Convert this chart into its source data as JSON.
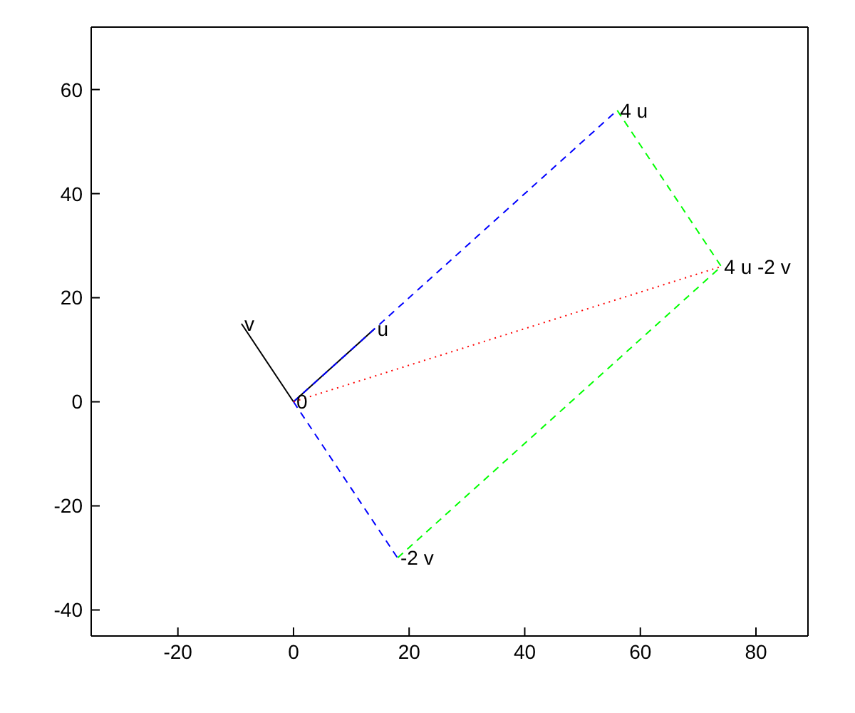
{
  "chart_data": {
    "type": "line",
    "xlim": [
      -35,
      89
    ],
    "ylim": [
      -45,
      72
    ],
    "xticks": [
      -20,
      0,
      20,
      40,
      60,
      80
    ],
    "yticks": [
      -40,
      -20,
      0,
      20,
      40,
      60
    ],
    "grid": false,
    "legend": false,
    "marker": "none",
    "series": [
      {
        "color": "#000000",
        "x": [
          0,
          14
        ],
        "values": [
          0,
          14
        ],
        "line_style": "solid"
      },
      {
        "color": "#000000",
        "x": [
          0,
          -9
        ],
        "values": [
          0,
          15
        ],
        "line_style": "solid"
      },
      {
        "color": "#0000ff",
        "x": [
          0,
          56
        ],
        "values": [
          0,
          56
        ],
        "line_style": "dashed"
      },
      {
        "color": "#0000ff",
        "x": [
          0,
          18
        ],
        "values": [
          0,
          -30
        ],
        "line_style": "dashed"
      },
      {
        "color": "#00ff00",
        "x": [
          56,
          74,
          18
        ],
        "values": [
          56,
          26,
          -30
        ],
        "line_style": "dashed"
      },
      {
        "color": "#ff0000",
        "x": [
          0,
          74
        ],
        "values": [
          0,
          26
        ],
        "line_style": "dotted"
      }
    ],
    "annotations": [
      {
        "text": "u",
        "x": 14,
        "y": 14
      },
      {
        "text": "v",
        "x": -9,
        "y": 15
      },
      {
        "text": "0",
        "x": 0,
        "y": 0
      },
      {
        "text": "4 u",
        "x": 56,
        "y": 56
      },
      {
        "text": "4 u -2 v",
        "x": 74,
        "y": 26
      },
      {
        "text": "-2 v",
        "x": 18,
        "y": -30
      }
    ]
  }
}
